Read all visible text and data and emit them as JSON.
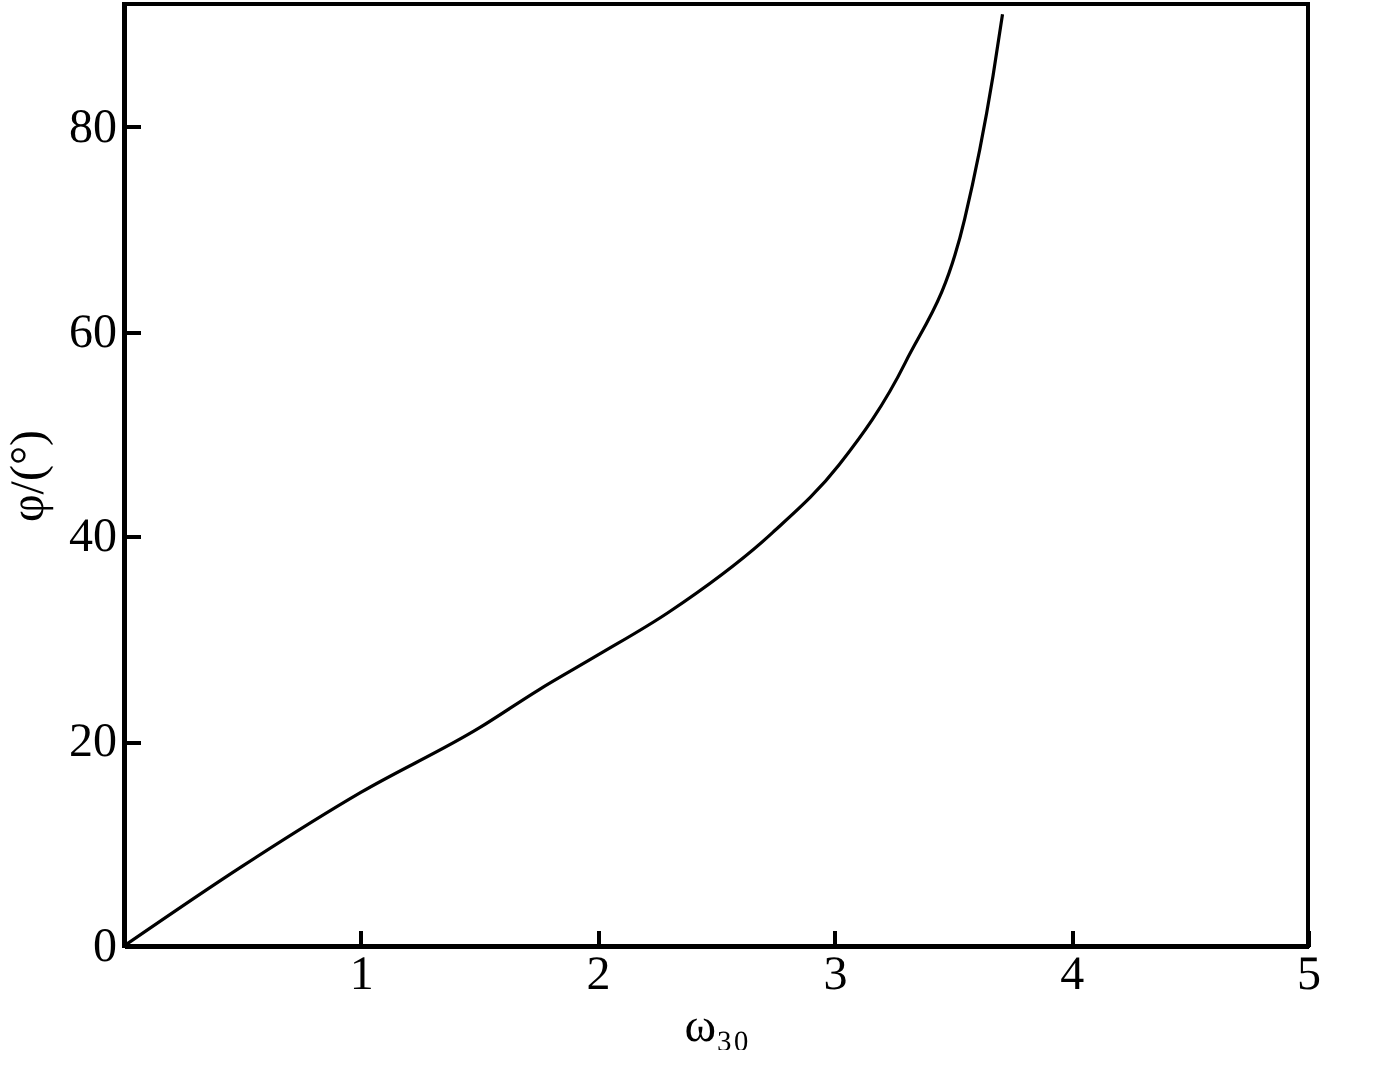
{
  "chart_data": {
    "type": "line",
    "xlabel": "ω₃₀",
    "ylabel": "φ/(°)",
    "x": [
      0,
      0.5,
      1,
      1.5,
      1.75,
      2,
      2.3,
      2.74,
      3.02,
      3.3,
      3.55,
      3.67,
      3.71
    ],
    "series": [
      {
        "color": "#000000",
        "values": [
          0,
          7.8,
          15,
          21.3,
          25,
          28.4,
          32.6,
          40.4,
          47,
          57,
          71,
          85,
          91
        ]
      }
    ],
    "xlim": [
      0,
      5
    ],
    "xticks": [
      1,
      2,
      3,
      4,
      5
    ],
    "ylim": [
      0,
      92
    ],
    "yticks": [
      0,
      20,
      40,
      60,
      80
    ],
    "grid": false,
    "marker": "none",
    "line_style": "solid"
  }
}
